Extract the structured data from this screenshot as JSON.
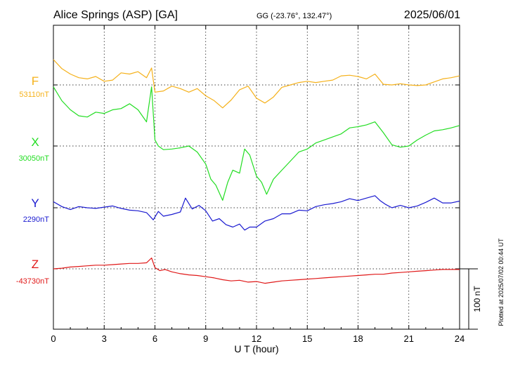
{
  "chart_data": {
    "type": "line",
    "title": "Alice Springs (ASP)  [GA]",
    "subtitle": "GG (-23.76°, 132.47°)",
    "date": "2025/06/01",
    "xlabel": "U T (hour)",
    "xlim": [
      0,
      24
    ],
    "x_ticks": [
      "0",
      "3",
      "6",
      "9",
      "12",
      "15",
      "18",
      "21",
      "24"
    ],
    "scale_bar_label": "100 nT",
    "plotted_note": "Plotted at 2025/07/02 00:44 UT",
    "grid": true,
    "series": [
      {
        "name": "F",
        "baseline_label": "53110nT",
        "color": "#f5b11a",
        "x": [
          0,
          0.5,
          1,
          1.5,
          2,
          2.5,
          3,
          3.5,
          4,
          4.5,
          5,
          5.5,
          5.8,
          6,
          6.5,
          7,
          7.5,
          8,
          8.5,
          9,
          9.5,
          10,
          10.5,
          11,
          11.5,
          12,
          12.5,
          13,
          13.5,
          14,
          14.5,
          15,
          15.5,
          16,
          16.5,
          17,
          17.5,
          18,
          18.5,
          19,
          19.5,
          20,
          20.5,
          21,
          21.5,
          22,
          22.5,
          23,
          23.5,
          24
        ],
        "values": [
          53152,
          53137,
          53128,
          53122,
          53120,
          53124,
          53116,
          53118,
          53130,
          53128,
          53132,
          53122,
          53138,
          53098,
          53100,
          53108,
          53104,
          53098,
          53104,
          53092,
          53084,
          53072,
          53085,
          53102,
          53108,
          53088,
          53080,
          53090,
          53106,
          53110,
          53114,
          53116,
          53114,
          53116,
          53118,
          53125,
          53126,
          53124,
          53120,
          53128,
          53111,
          53110,
          53112,
          53110,
          53109,
          53110,
          53115,
          53120,
          53122,
          53125
        ]
      },
      {
        "name": "X",
        "baseline_label": "30050nT",
        "color": "#22dd22",
        "x": [
          0,
          0.5,
          1,
          1.5,
          2,
          2.5,
          3,
          3.5,
          4,
          4.5,
          5,
          5.5,
          5.8,
          6,
          6.2,
          6.5,
          7,
          7.5,
          8,
          8.5,
          9,
          9.3,
          9.6,
          10,
          10.3,
          10.6,
          11,
          11.3,
          11.6,
          12,
          12.3,
          12.6,
          13,
          13.5,
          14,
          14.5,
          15,
          15.5,
          16,
          16.5,
          17,
          17.5,
          18,
          18.5,
          19,
          19.5,
          20,
          20.5,
          21,
          21.5,
          22,
          22.5,
          23,
          23.5,
          24
        ],
        "values": [
          30148,
          30125,
          30110,
          30100,
          30098,
          30106,
          30104,
          30110,
          30112,
          30120,
          30110,
          30090,
          30148,
          30060,
          30050,
          30044,
          30045,
          30047,
          30050,
          30040,
          30020,
          29995,
          29985,
          29960,
          29990,
          30010,
          30005,
          30045,
          30035,
          30000,
          29990,
          29970,
          29995,
          30010,
          30025,
          30040,
          30045,
          30055,
          30060,
          30065,
          30070,
          30080,
          30082,
          30085,
          30090,
          30072,
          30052,
          30048,
          30050,
          30060,
          30068,
          30075,
          30077,
          30080,
          30084
        ]
      },
      {
        "name": "Y",
        "baseline_label": "2290nT",
        "color": "#1a1ad0",
        "x": [
          0,
          0.5,
          1,
          1.5,
          2,
          2.5,
          3,
          3.5,
          4,
          4.5,
          5,
          5.5,
          5.9,
          6.2,
          6.5,
          7,
          7.5,
          7.8,
          8.2,
          8.6,
          9,
          9.4,
          9.8,
          10.2,
          10.6,
          11,
          11.3,
          11.6,
          12,
          12.5,
          13,
          13.5,
          14,
          14.5,
          15,
          15.5,
          16,
          16.5,
          17,
          17.5,
          18,
          18.5,
          19,
          19.3,
          19.6,
          20,
          20.5,
          21,
          21.5,
          22,
          22.5,
          23,
          23.5,
          24
        ],
        "values": [
          2300,
          2292,
          2287,
          2292,
          2290,
          2289,
          2291,
          2293,
          2289,
          2286,
          2285,
          2282,
          2270,
          2284,
          2276,
          2279,
          2283,
          2306,
          2288,
          2294,
          2285,
          2268,
          2272,
          2262,
          2258,
          2263,
          2253,
          2258,
          2258,
          2268,
          2272,
          2280,
          2280,
          2286,
          2285,
          2292,
          2295,
          2297,
          2300,
          2305,
          2302,
          2306,
          2310,
          2302,
          2296,
          2290,
          2294,
          2290,
          2293,
          2299,
          2306,
          2298,
          2298,
          2301
        ]
      },
      {
        "name": "Z",
        "baseline_label": "-43730nT",
        "color": "#e01818",
        "x": [
          0,
          0.5,
          1,
          1.5,
          2,
          2.5,
          3,
          3.5,
          4,
          4.5,
          5,
          5.5,
          5.8,
          6,
          6.3,
          6.6,
          7,
          7.5,
          8,
          8.5,
          9,
          9.5,
          10,
          10.5,
          11,
          11.5,
          12,
          12.5,
          13,
          13.5,
          14,
          14.5,
          15,
          15.5,
          16,
          16.5,
          17,
          17.5,
          18,
          18.5,
          19,
          19.5,
          20,
          20.5,
          21,
          21.5,
          22,
          22.5,
          23,
          23.5,
          24
        ],
        "values": [
          -43730,
          -43729,
          -43727,
          -43726,
          -43725,
          -43724,
          -43724,
          -43723,
          -43722,
          -43721,
          -43721,
          -43720,
          -43712,
          -43728,
          -43733,
          -43731,
          -43735,
          -43738,
          -43740,
          -43741,
          -43743,
          -43745,
          -43748,
          -43750,
          -43749,
          -43752,
          -43751,
          -43754,
          -43752,
          -43750,
          -43749,
          -43748,
          -43747,
          -43746,
          -43745,
          -43744,
          -43743,
          -43742,
          -43741,
          -43740,
          -43739,
          -43739,
          -43737,
          -43736,
          -43735,
          -43734,
          -43733,
          -43732,
          -43731,
          -43731,
          -43731
        ]
      }
    ]
  }
}
